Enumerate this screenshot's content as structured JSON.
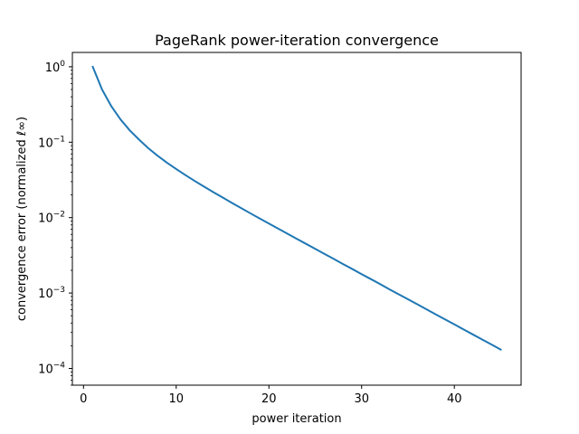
{
  "chart_data": {
    "type": "line",
    "title": "PageRank power-iteration convergence",
    "xlabel": "power iteration",
    "ylabel": "convergence error (normalized ℓ∞)",
    "xscale": "linear",
    "yscale": "log",
    "xlim": [
      -1.2,
      47.2
    ],
    "ylim": [
      6e-05,
      1.55
    ],
    "grid": false,
    "xticks": [
      0,
      10,
      20,
      30,
      40
    ],
    "yticks": [
      {
        "value": 1,
        "base": "10",
        "exp": "0"
      },
      {
        "value": 0.1,
        "base": "10",
        "exp": "−1"
      },
      {
        "value": 0.01,
        "base": "10",
        "exp": "−2"
      },
      {
        "value": 0.001,
        "base": "10",
        "exp": "−3"
      },
      {
        "value": 0.0001,
        "base": "10",
        "exp": "−4"
      }
    ],
    "series": [
      {
        "color": "#1f77b4",
        "x": [
          1,
          2,
          3,
          4,
          5,
          6,
          7,
          8,
          9,
          10,
          11,
          12,
          13,
          14,
          15,
          16,
          17,
          18,
          19,
          20,
          21,
          22,
          23,
          24,
          25,
          26,
          27,
          28,
          29,
          30,
          31,
          32,
          33,
          34,
          35,
          36,
          37,
          38,
          39,
          40,
          41,
          42,
          43,
          44,
          45
        ],
        "y": [
          1.0,
          0.5,
          0.3,
          0.2,
          0.143,
          0.108,
          0.083,
          0.066,
          0.0535,
          0.0441,
          0.0366,
          0.0306,
          0.0258,
          0.0218,
          0.0185,
          0.0157,
          0.0134,
          0.0114,
          0.00976,
          0.00835,
          0.00715,
          0.00612,
          0.00524,
          0.00449,
          0.00385,
          0.0033,
          0.00283,
          0.00242,
          0.00208,
          0.00178,
          0.00153,
          0.00131,
          0.00112,
          0.000963,
          0.000826,
          0.000709,
          0.000608,
          0.000521,
          0.000447,
          0.000384,
          0.000329,
          0.000282,
          0.000242,
          0.000208,
          0.000178
        ]
      }
    ]
  }
}
